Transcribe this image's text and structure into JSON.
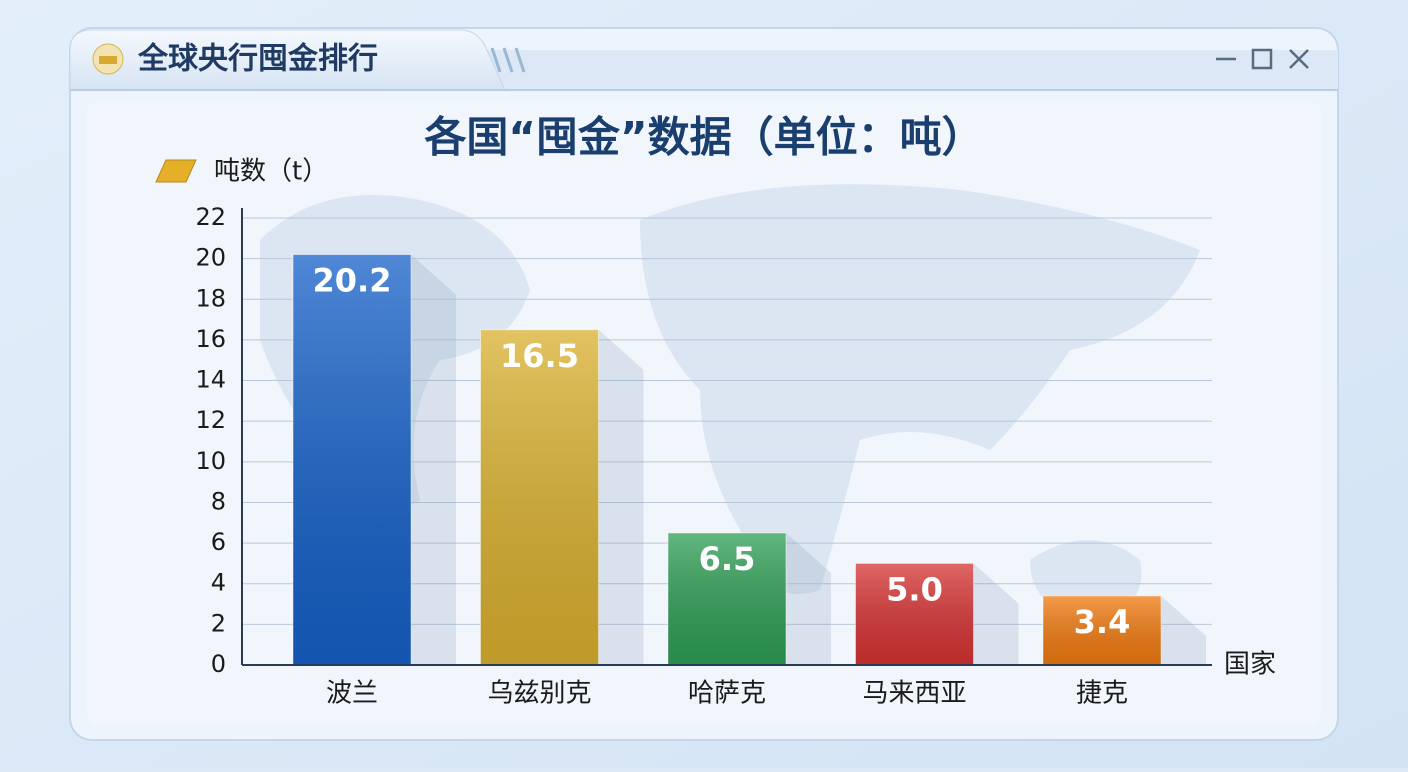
{
  "window_title": "全球央行囤金排行",
  "chart_data": {
    "type": "bar",
    "title": "各国“囤金”数据（单位：吨）",
    "y_label": "吨数（t）",
    "x_label": "国家",
    "categories": [
      "波兰",
      "乌兹别克",
      "哈萨克",
      "马来西亚",
      "捷克"
    ],
    "values": [
      20.2,
      16.5,
      6.5,
      5.0,
      3.4
    ],
    "value_labels": [
      "20.2",
      "16.5",
      "6.5",
      "5.0",
      "3.4"
    ],
    "colors": [
      "#1560c8",
      "#d9b02e",
      "#2e9e55",
      "#d63333",
      "#f07a10"
    ],
    "ylim": [
      0,
      22
    ],
    "yticks": [
      0,
      2,
      4,
      6,
      8,
      10,
      12,
      14,
      16,
      18,
      20,
      22
    ],
    "grid": true
  }
}
